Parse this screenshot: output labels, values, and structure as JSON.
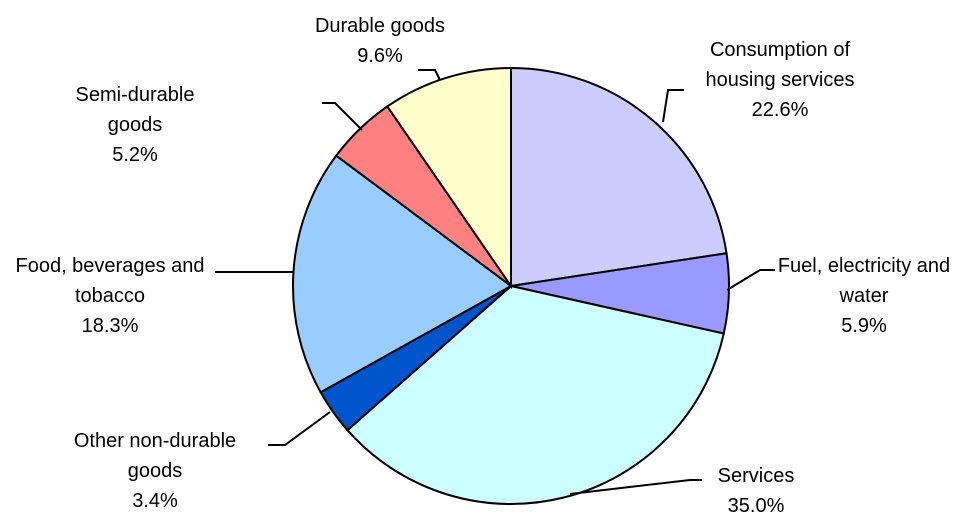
{
  "chart_data": {
    "type": "pie",
    "categories": [
      "Consumption of housing services",
      "Fuel, electricity and water",
      "Services",
      "Other non-durable goods",
      "Food, beverages and tobacco",
      "Semi-durable goods",
      "Durable goods"
    ],
    "values": [
      22.6,
      5.9,
      35.0,
      3.4,
      18.3,
      5.2,
      9.6
    ],
    "value_labels": [
      "22.6%",
      "5.9%",
      "35.0%",
      "3.4%",
      "18.3%",
      "5.2%",
      "9.6%"
    ],
    "colors": [
      "#ccccff",
      "#9999ff",
      "#ccffff",
      "#0055cc",
      "#99ccff",
      "#ff8080",
      "#ffffcc"
    ]
  }
}
